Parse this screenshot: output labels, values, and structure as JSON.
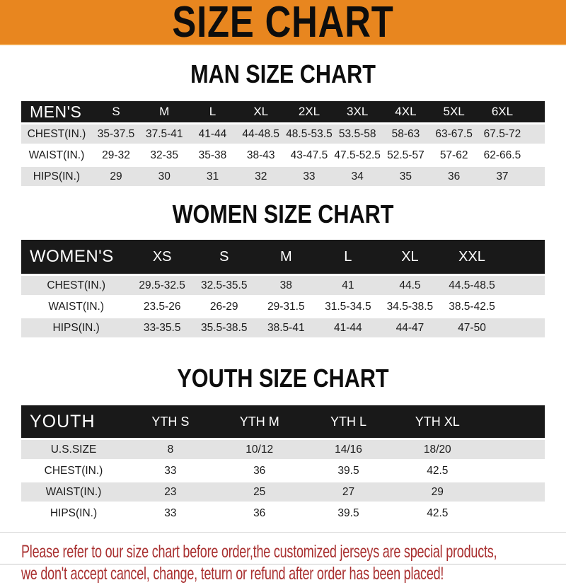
{
  "banner": {
    "title": "SIZE CHART"
  },
  "sections": [
    {
      "title": "MAN SIZE CHART",
      "header_label": "MEN'S",
      "columns": [
        "S",
        "M",
        "L",
        "XL",
        "2XL",
        "3XL",
        "4XL",
        "5XL",
        "6XL"
      ],
      "rows": [
        {
          "label": "CHEST(IN.)",
          "values": [
            "35-37.5",
            "37.5-41",
            "41-44",
            "44-48.5",
            "48.5-53.5",
            "53.5-58",
            "58-63",
            "63-67.5",
            "67.5-72"
          ]
        },
        {
          "label": "WAIST(IN.)",
          "values": [
            "29-32",
            "32-35",
            "35-38",
            "38-43",
            "43-47.5",
            "47.5-52.5",
            "52.5-57",
            "57-62",
            "62-66.5"
          ]
        },
        {
          "label": "HIPS(IN.)",
          "values": [
            "29",
            "30",
            "31",
            "32",
            "33",
            "34",
            "35",
            "36",
            "37"
          ]
        }
      ]
    },
    {
      "title": "WOMEN SIZE CHART",
      "header_label": "WOMEN'S",
      "columns": [
        "XS",
        "S",
        "M",
        "L",
        "XL",
        "XXL"
      ],
      "rows": [
        {
          "label": "CHEST(IN.)",
          "values": [
            "29.5-32.5",
            "32.5-35.5",
            "38",
            "41",
            "44.5",
            "44.5-48.5"
          ]
        },
        {
          "label": "WAIST(IN.)",
          "values": [
            "23.5-26",
            "26-29",
            "29-31.5",
            "31.5-34.5",
            "34.5-38.5",
            "38.5-42.5"
          ]
        },
        {
          "label": "HIPS(IN.)",
          "values": [
            "33-35.5",
            "35.5-38.5",
            "38.5-41",
            "41-44",
            "44-47",
            "47-50"
          ]
        }
      ]
    },
    {
      "title": "YOUTH SIZE CHART",
      "header_label": "YOUTH",
      "columns": [
        "YTH S",
        "YTH M",
        "YTH L",
        "YTH XL"
      ],
      "rows": [
        {
          "label": "U.S.SIZE",
          "values": [
            "8",
            "10/12",
            "14/16",
            "18/20"
          ]
        },
        {
          "label": "CHEST(IN.)",
          "values": [
            "33",
            "36",
            "39.5",
            "42.5"
          ]
        },
        {
          "label": "WAIST(IN.)",
          "values": [
            "23",
            "25",
            "27",
            "29"
          ]
        },
        {
          "label": "HIPS(IN.)",
          "values": [
            "33",
            "36",
            "39.5",
            "42.5"
          ]
        }
      ]
    }
  ],
  "footer": {
    "line1": "Please refer to our size chart before order,the customized jerseys are special products,",
    "line2": "we don't accept cancel, change, teturn or refund after order has been placed!"
  },
  "colors": {
    "banner_bg": "#E8861F",
    "header_bar": "#191919",
    "row_gray": "#E3E3E3",
    "note_red": "#A93030"
  }
}
